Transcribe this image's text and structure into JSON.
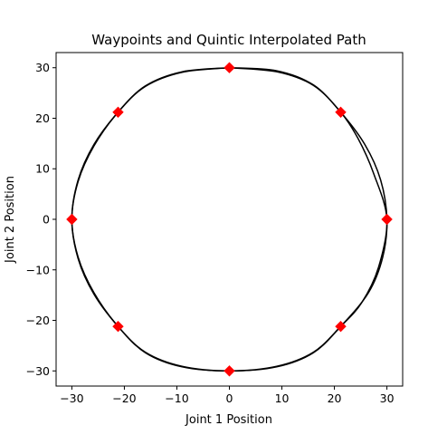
{
  "chart_data": {
    "type": "line",
    "title": "Waypoints and Quintic Interpolated Path",
    "xlabel": "Joint 1 Position",
    "ylabel": "Joint 2 Position",
    "xlim": [
      -33,
      33
    ],
    "ylim": [
      -33,
      33
    ],
    "xticks": [
      -30,
      -20,
      -10,
      0,
      10,
      20,
      30
    ],
    "yticks": [
      -30,
      -20,
      -10,
      0,
      10,
      20,
      30
    ],
    "xtick_labels": [
      "−30",
      "−20",
      "−10",
      "0",
      "10",
      "20",
      "30"
    ],
    "ytick_labels": [
      "−30",
      "−20",
      "−10",
      "0",
      "10",
      "20",
      "30"
    ],
    "grid": false,
    "legend": "none",
    "series": [
      {
        "type": "scatter",
        "marker": "diamond",
        "color": "#ff0000",
        "x": [
          0,
          21.2,
          30,
          21.2,
          0,
          -21.2,
          -30,
          -21.2
        ],
        "y": [
          30,
          21.2,
          0,
          -21.2,
          -30,
          -21.2,
          0,
          21.2
        ]
      },
      {
        "type": "line",
        "color": "#000000",
        "x": [
          0,
          9,
          16,
          21.2,
          24.5,
          27.5,
          30,
          28.4,
          25.2,
          21.2,
          16,
          9,
          0,
          -9,
          -16,
          -21.2,
          -25.8,
          -28.8,
          -30,
          -28.8,
          -25.8,
          -21.2,
          -16,
          -9,
          0
        ],
        "y": [
          30,
          29.2,
          26.5,
          21.2,
          16,
          9,
          0,
          -9.5,
          -16.5,
          -21.2,
          -26.3,
          -29.1,
          -30,
          -29.1,
          -26.3,
          -21.2,
          -14.5,
          -7.5,
          0,
          7.5,
          14.5,
          21.2,
          26.3,
          29.1,
          30
        ]
      },
      {
        "type": "line",
        "color": "#000000",
        "x": [
          0,
          9,
          16,
          21.2,
          25.8,
          28.8,
          30,
          29.2,
          26.5,
          21.2,
          16,
          9,
          0,
          -9,
          -16,
          -21.2,
          -25.8,
          -28.8,
          -30,
          -28.8,
          -25.8,
          -21.2,
          -16,
          -9,
          0
        ],
        "y": [
          30,
          29.4,
          26.6,
          21.2,
          14.8,
          7.8,
          0,
          -7.5,
          -14.5,
          -21.2,
          -26.4,
          -29.2,
          -30,
          -29.2,
          -26.4,
          -21.2,
          -14.8,
          -7.8,
          0,
          7.8,
          14.8,
          21.2,
          26.4,
          29.2,
          30
        ]
      }
    ]
  }
}
